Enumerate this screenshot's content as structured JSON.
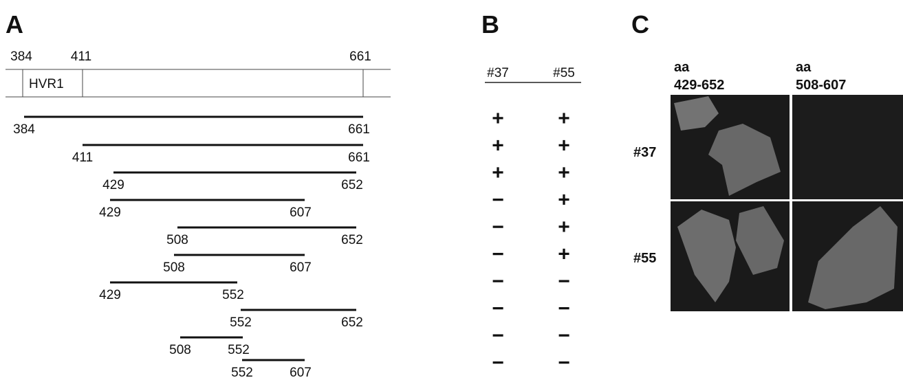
{
  "panel_a": {
    "label": "A",
    "ruler": {
      "start": "384",
      "hvr_end": "411",
      "end": "661",
      "region": "HVR1"
    },
    "fragments": [
      {
        "start": "384",
        "end": "661"
      },
      {
        "start": "411",
        "end": "661"
      },
      {
        "start": "429",
        "end": "652"
      },
      {
        "start": "429",
        "end": "607"
      },
      {
        "start": "508",
        "end": "652"
      },
      {
        "start": "508",
        "end": "607"
      },
      {
        "start": "429",
        "end": "552"
      },
      {
        "start": "552",
        "end": "652"
      },
      {
        "start": "508",
        "end": "552"
      },
      {
        "start": "552",
        "end": "607"
      }
    ]
  },
  "panel_b": {
    "label": "B",
    "columns": [
      "#37",
      "#55"
    ],
    "rows": [
      [
        "+",
        "+"
      ],
      [
        "+",
        "+"
      ],
      [
        "+",
        "+"
      ],
      [
        "−",
        "+"
      ],
      [
        "−",
        "+"
      ],
      [
        "−",
        "+"
      ],
      [
        "−",
        "−"
      ],
      [
        "−",
        "−"
      ],
      [
        "−",
        "−"
      ],
      [
        "−",
        "−"
      ]
    ]
  },
  "panel_c": {
    "label": "C",
    "columns": [
      {
        "line1": "aa",
        "line2": "429-652"
      },
      {
        "line1": "aa",
        "line2": "508-607"
      }
    ],
    "rows": [
      "#37",
      "#55"
    ]
  }
}
